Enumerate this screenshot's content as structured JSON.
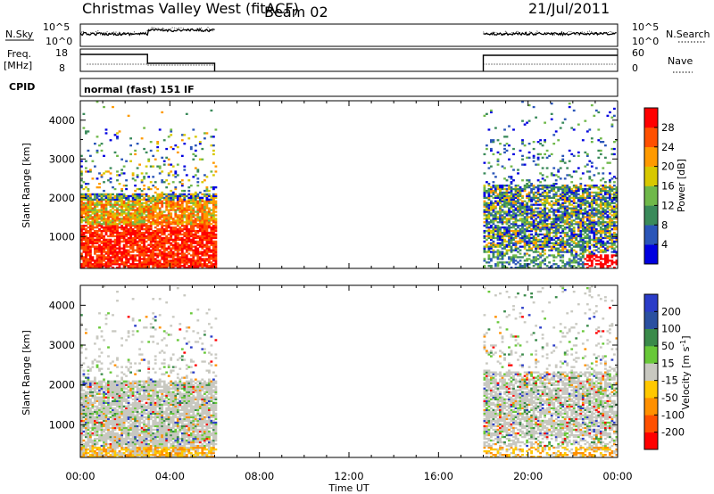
{
  "header": {
    "title": "Christmas Valley West (fitACF)",
    "beam": "Beam 02",
    "date": "21/Jul/2011"
  },
  "top_panels": {
    "nsky_label": "N.Sky",
    "nsky_ticks": [
      "10^5",
      "10^0"
    ],
    "nsearch_label": "N.Search",
    "nsearch_ticks": [
      "10^5",
      "10^0"
    ],
    "freq_label": "Freq.",
    "freq_unit": "[MHz]",
    "freq_ticks": [
      "18",
      "8"
    ],
    "nave_label": "Nave",
    "nave_ticks": [
      "60",
      "0"
    ],
    "cpid_label": "CPID",
    "cpid_text": "normal (fast) 151 IF"
  },
  "colors": {
    "power": [
      "#0000e0",
      "#2a55b8",
      "#3a8a5a",
      "#6fb84a",
      "#d8c800",
      "#ff9a00",
      "#ff5000",
      "#ff0000"
    ],
    "velocity": [
      "#2a3cc8",
      "#2a50a0",
      "#3a8a4a",
      "#68c838",
      "#c8c8c0",
      "#ffc800",
      "#ff9000",
      "#ff5000",
      "#ff0000"
    ]
  },
  "chart_data": [
    {
      "type": "heatmap",
      "name": "Power",
      "ylabel": "Slant Range [km]",
      "yticks": [
        "1000",
        "2000",
        "3000",
        "4000"
      ],
      "xticks": [
        "00:00",
        "04:00",
        "08:00",
        "12:00",
        "16:00",
        "20:00",
        "00:00"
      ],
      "xlim_hours": [
        0,
        24
      ],
      "ylim_km": [
        180,
        4500
      ],
      "colorbar_label": "Power [dB]",
      "colorbar_ticks": [
        "4",
        "8",
        "12",
        "16",
        "20",
        "24",
        "28"
      ],
      "data_coverage_hours": [
        [
          0,
          6
        ],
        [
          18,
          24
        ]
      ]
    },
    {
      "type": "heatmap",
      "name": "Velocity",
      "ylabel": "Slant Range [km]",
      "yticks": [
        "1000",
        "2000",
        "3000",
        "4000"
      ],
      "xticks": [
        "00:00",
        "04:00",
        "08:00",
        "12:00",
        "16:00",
        "20:00",
        "00:00"
      ],
      "xlim_hours": [
        0,
        24
      ],
      "ylim_km": [
        180,
        4500
      ],
      "xlabel": "Time UT",
      "colorbar_label": "Velocity [m s-1]",
      "colorbar_ticks": [
        "200",
        "100",
        "50",
        "15",
        "-15",
        "-50",
        "-100",
        "-200"
      ],
      "data_coverage_hours": [
        [
          0,
          6
        ],
        [
          18,
          24
        ]
      ]
    }
  ]
}
